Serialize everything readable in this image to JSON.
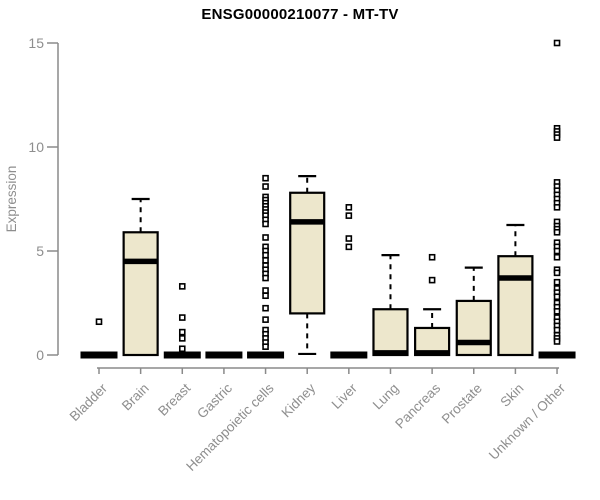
{
  "chart_data": {
    "type": "boxplot",
    "title": "ENSG00000210077 - MT-TV",
    "ylabel": "Expression",
    "ylim": [
      0,
      15
    ],
    "yticks": [
      0,
      5,
      10,
      15
    ],
    "grid": false,
    "legend": "none",
    "colors": {
      "box_fill": "#EDE7CC",
      "box_stroke": "#000000",
      "median": "#000000",
      "axis": "#8a8a8a",
      "tick_text": "#8e8e8e",
      "title": "#000000",
      "background": "#ffffff"
    },
    "categories": [
      "Bladder",
      "Brain",
      "Breast",
      "Gastric",
      "Hematopoietic cells",
      "Kidney",
      "Liver",
      "Lung",
      "Pancreas",
      "Prostate",
      "Skin",
      "Unknown / Other"
    ],
    "boxes": [
      {
        "category": "Bladder",
        "q1": 0,
        "median": 0,
        "q3": 0,
        "whisker_low": 0,
        "whisker_high": 0,
        "outliers": [
          1.6
        ]
      },
      {
        "category": "Brain",
        "q1": 0,
        "median": 4.5,
        "q3": 5.9,
        "whisker_low": 0,
        "whisker_high": 7.5,
        "outliers": []
      },
      {
        "category": "Breast",
        "q1": 0,
        "median": 0,
        "q3": 0,
        "whisker_low": 0,
        "whisker_high": 0,
        "outliers": [
          3.3,
          1.8,
          1.1,
          0.8,
          0.3
        ]
      },
      {
        "category": "Gastric",
        "q1": 0,
        "median": 0,
        "q3": 0,
        "whisker_low": 0,
        "whisker_high": 0,
        "outliers": []
      },
      {
        "category": "Hematopoietic cells",
        "q1": 0,
        "median": 0,
        "q3": 0,
        "whisker_low": 0,
        "whisker_high": 0,
        "outliers": [
          8.5,
          8.1,
          7.6,
          7.45,
          7.3,
          7.15,
          7.0,
          6.85,
          6.7,
          6.5,
          6.3,
          5.65,
          5.2,
          5.0,
          4.8,
          4.55,
          4.3,
          4.1,
          3.9,
          3.7,
          3.1,
          2.85,
          2.25,
          1.7,
          1.2,
          1.0,
          0.8,
          0.6,
          0.4
        ]
      },
      {
        "category": "Kidney",
        "q1": 2.0,
        "median": 6.4,
        "q3": 7.8,
        "whisker_low": 0.05,
        "whisker_high": 8.6,
        "outliers": []
      },
      {
        "category": "Liver",
        "q1": 0,
        "median": 0,
        "q3": 0,
        "whisker_low": 0,
        "whisker_high": 0,
        "outliers": [
          7.1,
          6.7,
          5.6,
          5.2
        ]
      },
      {
        "category": "Lung",
        "q1": 0,
        "median": 0.1,
        "q3": 2.2,
        "whisker_low": 0,
        "whisker_high": 4.8,
        "outliers": []
      },
      {
        "category": "Pancreas",
        "q1": 0,
        "median": 0.1,
        "q3": 1.3,
        "whisker_low": 0,
        "whisker_high": 2.2,
        "outliers": [
          4.7,
          3.6
        ]
      },
      {
        "category": "Prostate",
        "q1": 0,
        "median": 0.6,
        "q3": 2.6,
        "whisker_low": 0,
        "whisker_high": 4.2,
        "outliers": []
      },
      {
        "category": "Skin",
        "q1": 0,
        "median": 3.7,
        "q3": 4.75,
        "whisker_low": 0,
        "whisker_high": 6.25,
        "outliers": []
      },
      {
        "category": "Unknown / Other",
        "q1": 0,
        "median": 0,
        "q3": 0,
        "whisker_low": 0,
        "whisker_high": 0,
        "outliers": [
          15.0,
          10.9,
          10.75,
          10.6,
          10.45,
          8.3,
          8.1,
          7.9,
          7.7,
          7.5,
          7.3,
          7.1,
          6.4,
          6.2,
          6.05,
          5.9,
          5.4,
          5.2,
          5.0,
          4.7,
          4.1,
          3.95,
          3.5,
          3.2,
          3.0,
          2.8,
          2.5,
          2.3,
          2.1,
          1.8,
          1.6,
          1.4,
          1.2,
          0.95,
          0.8,
          0.65
        ]
      }
    ]
  }
}
